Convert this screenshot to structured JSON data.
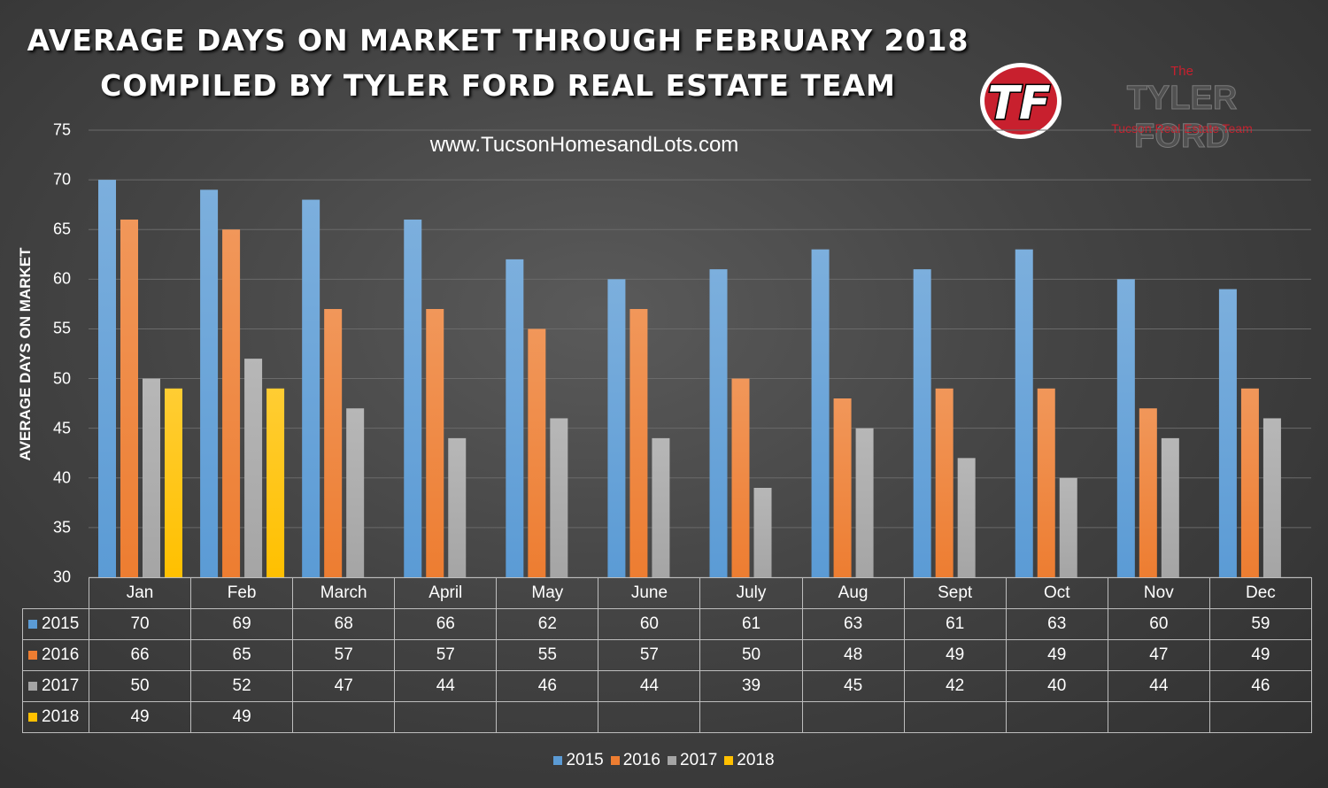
{
  "header": {
    "title_line1": "AVERAGE DAYS ON MARKET THROUGH FEBRUARY 2018",
    "title_line2": "COMPILED BY TYLER FORD REAL ESTATE TEAM",
    "website": "www.TucsonHomesandLots.com"
  },
  "brand": {
    "logo_text": "TF",
    "the": "The",
    "name": "TYLER FORD",
    "subtitle": "Tucson Real Estate Team"
  },
  "chart_data": {
    "type": "bar",
    "title": "AVERAGE DAYS ON MARKET THROUGH FEBRUARY 2018",
    "ylabel": "AVERAGE DAYS ON MARKET",
    "xlabel": "",
    "ylim": [
      30,
      75
    ],
    "yticks": [
      30,
      35,
      40,
      45,
      50,
      55,
      60,
      65,
      70,
      75
    ],
    "grid": true,
    "legend": "bottom",
    "categories": [
      "Jan",
      "Feb",
      "March",
      "April",
      "May",
      "June",
      "July",
      "Aug",
      "Sept",
      "Oct",
      "Nov",
      "Dec"
    ],
    "series": [
      {
        "name": "2015",
        "color": "#5b9bd5",
        "values": [
          70,
          69,
          68,
          66,
          62,
          60,
          61,
          63,
          61,
          63,
          60,
          59
        ]
      },
      {
        "name": "2016",
        "color": "#ed7d31",
        "values": [
          66,
          65,
          57,
          57,
          55,
          57,
          50,
          48,
          49,
          49,
          47,
          49
        ]
      },
      {
        "name": "2017",
        "color": "#a5a5a5",
        "values": [
          50,
          52,
          47,
          44,
          46,
          44,
          39,
          45,
          42,
          40,
          44,
          46
        ]
      },
      {
        "name": "2018",
        "color": "#ffc000",
        "values": [
          49,
          49,
          null,
          null,
          null,
          null,
          null,
          null,
          null,
          null,
          null,
          null
        ]
      }
    ]
  }
}
